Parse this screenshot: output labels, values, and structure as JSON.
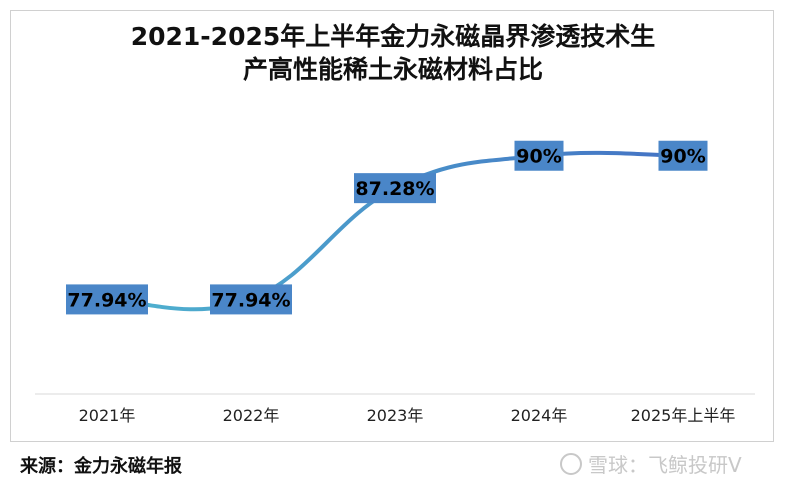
{
  "chart_data": {
    "type": "line",
    "title_line1": "2021-2025年上半年金力永磁晶界渗透技术生",
    "title_line2": "产高性能稀土永磁材料占比",
    "categories": [
      "2021年",
      "2022年",
      "2023年",
      "2024年",
      "2025年上半年"
    ],
    "values": [
      77.94,
      77.94,
      87.28,
      90,
      90
    ],
    "data_labels": [
      "77.94%",
      "77.94%",
      "87.28%",
      "90%",
      "90%"
    ],
    "ylim": [
      70,
      93
    ],
    "grid": false,
    "legend": "none",
    "line_color_start": "#4fb3cf",
    "line_color_end": "#4472c4",
    "label_bg": "#4a86c8"
  },
  "footer": {
    "source": "来源：金力永磁年报",
    "watermark": "雪球：飞鲸投研V"
  }
}
